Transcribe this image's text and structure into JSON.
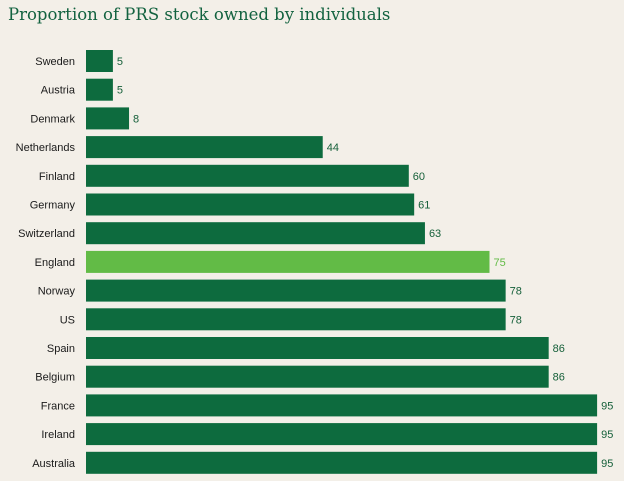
{
  "chart_data": {
    "type": "bar",
    "orientation": "horizontal",
    "title": "Proportion of PRS stock owned by individuals",
    "xlabel": "",
    "ylabel": "",
    "xlim": [
      0,
      100
    ],
    "grid": false,
    "categories": [
      "Sweden",
      "Austria",
      "Denmark",
      "Netherlands",
      "Finland",
      "Germany",
      "Switzerland",
      "England",
      "Norway",
      "US",
      "Spain",
      "Belgium",
      "France",
      "Ireland",
      "Australia"
    ],
    "values": [
      5,
      5,
      8,
      44,
      60,
      61,
      63,
      75,
      78,
      78,
      86,
      86,
      95,
      95,
      95
    ],
    "highlight_category": "England",
    "colors": {
      "bar": "#0d6b3e",
      "highlight": "#62bb46",
      "value_label": "#16603a",
      "highlight_label": "#62bb46"
    }
  }
}
